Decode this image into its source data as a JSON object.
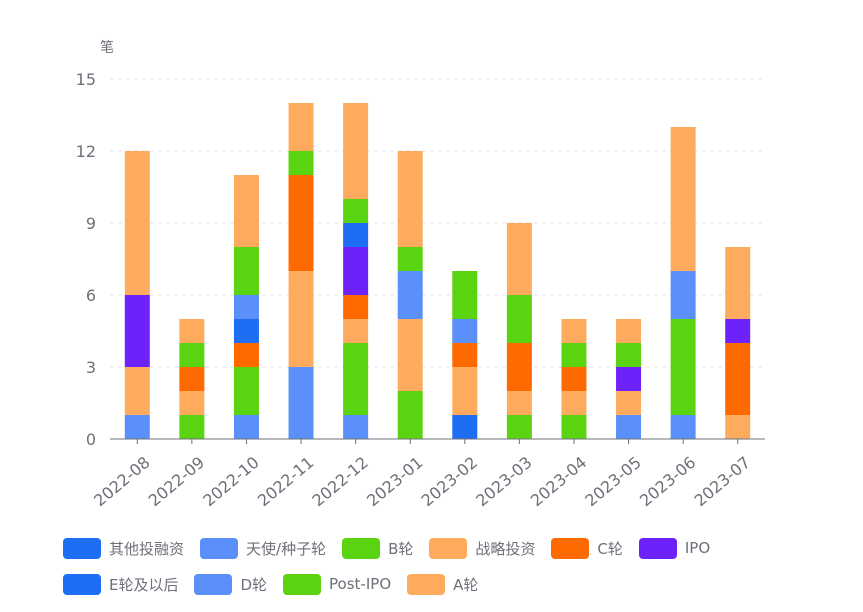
{
  "chart_data": {
    "type": "bar",
    "stacked": true,
    "ylabel": "笔",
    "ylim": [
      0,
      15
    ],
    "yticks": [
      0,
      3,
      6,
      9,
      12,
      15
    ],
    "grid": true,
    "legend_position": "bottom",
    "categories": [
      "2022-08",
      "2022-09",
      "2022-10",
      "2022-11",
      "2022-12",
      "2023-01",
      "2023-02",
      "2023-03",
      "2023-04",
      "2023-05",
      "2023-06",
      "2023-07"
    ],
    "series": [
      {
        "name": "其他投融资",
        "color": "#1e6ef4",
        "values": [
          0,
          0,
          0,
          0,
          0,
          0,
          1,
          0,
          0,
          0,
          0,
          0
        ]
      },
      {
        "name": "天使/种子轮",
        "color": "#5b8ff9",
        "values": [
          1,
          0,
          1,
          3,
          1,
          0,
          0,
          0,
          0,
          1,
          1,
          0
        ]
      },
      {
        "name": "B轮",
        "color": "#5ad311",
        "values": [
          0,
          1,
          2,
          0,
          3,
          2,
          0,
          1,
          1,
          0,
          4,
          0
        ]
      },
      {
        "name": "战略投资",
        "color": "#ffab5e",
        "values": [
          2,
          1,
          0,
          4,
          1,
          3,
          2,
          1,
          1,
          1,
          0,
          1
        ]
      },
      {
        "name": "C轮",
        "color": "#ff6a00",
        "values": [
          0,
          1,
          1,
          4,
          1,
          0,
          1,
          2,
          1,
          0,
          0,
          3
        ]
      },
      {
        "name": "IPO",
        "color": "#6e22fa",
        "values": [
          3,
          0,
          0,
          0,
          2,
          0,
          0,
          0,
          0,
          1,
          0,
          1
        ]
      },
      {
        "name": "E轮及以后",
        "color": "#1e6ef4",
        "values": [
          0,
          0,
          1,
          0,
          1,
          0,
          0,
          0,
          0,
          0,
          0,
          0
        ]
      },
      {
        "name": "D轮",
        "color": "#5b8ff9",
        "values": [
          0,
          0,
          1,
          0,
          0,
          2,
          1,
          0,
          0,
          0,
          2,
          0
        ]
      },
      {
        "name": "Post-IPO",
        "color": "#5ad311",
        "values": [
          0,
          1,
          2,
          1,
          1,
          1,
          2,
          2,
          1,
          1,
          0,
          0
        ]
      },
      {
        "name": "A轮",
        "color": "#ffab5e",
        "values": [
          6,
          1,
          3,
          2,
          4,
          4,
          0,
          3,
          1,
          1,
          6,
          3
        ]
      }
    ]
  }
}
